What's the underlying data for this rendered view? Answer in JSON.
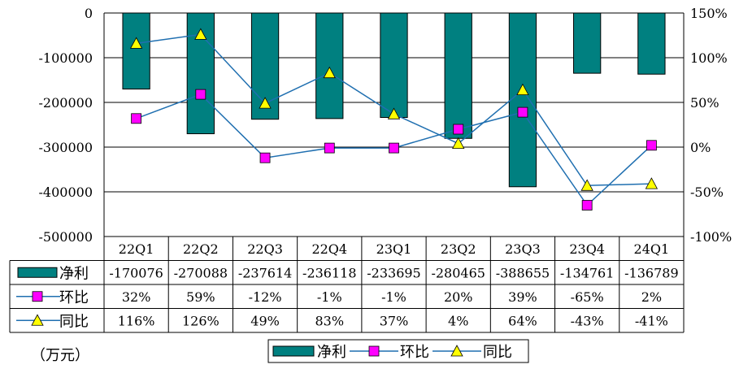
{
  "chart_data": {
    "type": "bar+line",
    "categories": [
      "22Q1",
      "22Q2",
      "22Q3",
      "22Q4",
      "23Q1",
      "23Q2",
      "23Q3",
      "23Q4",
      "24Q1"
    ],
    "unit_label": "（万元）",
    "left_axis": {
      "min": -500000,
      "max": 0,
      "ticks": [
        0,
        -100000,
        -200000,
        -300000,
        -400000,
        -500000
      ]
    },
    "right_axis": {
      "min": -100,
      "max": 150,
      "ticks": [
        150,
        100,
        50,
        0,
        -50,
        -100
      ],
      "suffix": "%"
    },
    "series": [
      {
        "name": "净利",
        "type": "bar",
        "axis": "left",
        "values": [
          -170076,
          -270088,
          -237614,
          -236118,
          -233695,
          -280465,
          -388655,
          -134761,
          -136789
        ],
        "labels": [
          "-170076",
          "-270088",
          "-237614",
          "-236118",
          "-233695",
          "-280465",
          "-388655",
          "-134761",
          "-136789"
        ],
        "color": "#008080"
      },
      {
        "name": "环比",
        "type": "line",
        "axis": "right",
        "marker": "square",
        "values": [
          32,
          59,
          -12,
          -1,
          -1,
          20,
          39,
          -65,
          2
        ],
        "labels": [
          "32%",
          "59%",
          "-12%",
          "-1%",
          "-1%",
          "20%",
          "39%",
          "-65%",
          "2%"
        ],
        "color": "#FF00FF"
      },
      {
        "name": "同比",
        "type": "line",
        "axis": "right",
        "marker": "triangle",
        "values": [
          116,
          126,
          49,
          83,
          37,
          4,
          64,
          -43,
          -41
        ],
        "labels": [
          "116%",
          "126%",
          "49%",
          "83%",
          "37%",
          "4%",
          "64%",
          "-43%",
          "-41%"
        ],
        "color": "#FFFF00"
      }
    ],
    "legend": [
      "净利",
      "环比",
      "同比"
    ],
    "legend_position": "bottom",
    "grid": true
  },
  "colors": {
    "line": "#1f6fb0",
    "grid": "#000000"
  }
}
